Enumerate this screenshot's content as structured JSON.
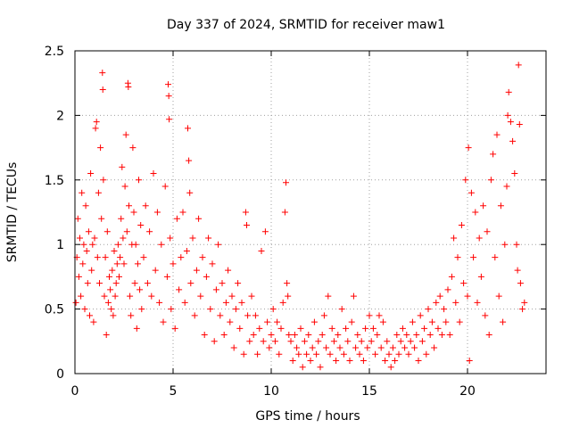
{
  "chart_data": {
    "type": "scatter",
    "title": "Day 337 of 2024, SRMTID for receiver maw1",
    "xlabel": "GPS time / hours",
    "ylabel": "SRMTID / TECUs",
    "xlim": [
      0,
      24
    ],
    "ylim": [
      0,
      2.5
    ],
    "xticks": [
      0,
      5,
      10,
      15,
      20
    ],
    "xtick_labels": [
      "0",
      "5",
      "10",
      "15",
      "20"
    ],
    "yticks": [
      0,
      0.5,
      1,
      1.5,
      2,
      2.5
    ],
    "ytick_labels": [
      "0",
      "0.5",
      "1",
      "1.5",
      "2",
      "2.5"
    ],
    "grid": true,
    "marker": "+",
    "color": "#ff0000",
    "series": [
      {
        "name": "SRMTID",
        "points": [
          [
            0.05,
            0.55
          ],
          [
            0.1,
            0.9
          ],
          [
            0.15,
            1.2
          ],
          [
            0.2,
            0.75
          ],
          [
            0.25,
            1.05
          ],
          [
            0.3,
            0.6
          ],
          [
            0.35,
            1.4
          ],
          [
            0.4,
            0.85
          ],
          [
            0.45,
            1.0
          ],
          [
            0.5,
            0.5
          ],
          [
            0.55,
            1.3
          ],
          [
            0.6,
            0.95
          ],
          [
            0.65,
            0.7
          ],
          [
            0.7,
            1.1
          ],
          [
            0.75,
            0.45
          ],
          [
            0.8,
            1.55
          ],
          [
            0.85,
            0.8
          ],
          [
            0.9,
            1.0
          ],
          [
            0.95,
            0.4
          ],
          [
            1.0,
            1.05
          ],
          [
            1.05,
            1.9
          ],
          [
            1.1,
            1.95
          ],
          [
            1.15,
            0.9
          ],
          [
            1.2,
            1.4
          ],
          [
            1.25,
            0.7
          ],
          [
            1.3,
            1.75
          ],
          [
            1.35,
            1.2
          ],
          [
            1.4,
            2.33
          ],
          [
            1.42,
            2.2
          ],
          [
            1.45,
            1.5
          ],
          [
            1.5,
            0.6
          ],
          [
            1.55,
            0.9
          ],
          [
            1.6,
            0.3
          ],
          [
            1.65,
            1.1
          ],
          [
            1.7,
            0.55
          ],
          [
            1.75,
            0.75
          ],
          [
            1.8,
            0.65
          ],
          [
            1.85,
            0.5
          ],
          [
            1.9,
            0.8
          ],
          [
            1.95,
            0.45
          ],
          [
            2.0,
            0.95
          ],
          [
            2.05,
            0.6
          ],
          [
            2.1,
            0.7
          ],
          [
            2.15,
            0.85
          ],
          [
            2.2,
            1.0
          ],
          [
            2.25,
            0.75
          ],
          [
            2.3,
            0.9
          ],
          [
            2.35,
            1.2
          ],
          [
            2.4,
            1.6
          ],
          [
            2.45,
            1.05
          ],
          [
            2.5,
            0.85
          ],
          [
            2.55,
            1.45
          ],
          [
            2.6,
            1.85
          ],
          [
            2.65,
            1.1
          ],
          [
            2.7,
            2.25
          ],
          [
            2.72,
            2.22
          ],
          [
            2.75,
            1.3
          ],
          [
            2.8,
            0.6
          ],
          [
            2.85,
            0.45
          ],
          [
            2.9,
            1.0
          ],
          [
            2.95,
            1.75
          ],
          [
            3.0,
            1.25
          ],
          [
            3.05,
            0.7
          ],
          [
            3.1,
            1.0
          ],
          [
            3.15,
            0.35
          ],
          [
            3.2,
            0.85
          ],
          [
            3.25,
            1.5
          ],
          [
            3.3,
            0.65
          ],
          [
            3.35,
            1.15
          ],
          [
            3.4,
            0.5
          ],
          [
            3.5,
            0.9
          ],
          [
            3.6,
            1.3
          ],
          [
            3.7,
            0.7
          ],
          [
            3.8,
            1.1
          ],
          [
            3.9,
            0.6
          ],
          [
            4.0,
            1.55
          ],
          [
            4.1,
            0.8
          ],
          [
            4.2,
            1.25
          ],
          [
            4.3,
            0.55
          ],
          [
            4.4,
            1.0
          ],
          [
            4.5,
            0.4
          ],
          [
            4.6,
            1.45
          ],
          [
            4.7,
            0.75
          ],
          [
            4.75,
            2.24
          ],
          [
            4.78,
            2.15
          ],
          [
            4.8,
            1.97
          ],
          [
            4.85,
            1.05
          ],
          [
            4.9,
            0.5
          ],
          [
            5.0,
            0.85
          ],
          [
            5.1,
            0.35
          ],
          [
            5.2,
            1.2
          ],
          [
            5.3,
            0.65
          ],
          [
            5.4,
            0.9
          ],
          [
            5.5,
            1.25
          ],
          [
            5.6,
            0.55
          ],
          [
            5.7,
            0.95
          ],
          [
            5.75,
            1.9
          ],
          [
            5.8,
            1.65
          ],
          [
            5.85,
            1.4
          ],
          [
            5.9,
            0.7
          ],
          [
            6.0,
            1.05
          ],
          [
            6.1,
            0.45
          ],
          [
            6.2,
            0.8
          ],
          [
            6.3,
            1.2
          ],
          [
            6.4,
            0.6
          ],
          [
            6.5,
            0.9
          ],
          [
            6.6,
            0.3
          ],
          [
            6.7,
            0.75
          ],
          [
            6.8,
            1.05
          ],
          [
            6.9,
            0.5
          ],
          [
            7.0,
            0.85
          ],
          [
            7.1,
            0.25
          ],
          [
            7.2,
            0.65
          ],
          [
            7.3,
            1.0
          ],
          [
            7.4,
            0.45
          ],
          [
            7.5,
            0.7
          ],
          [
            7.6,
            0.3
          ],
          [
            7.7,
            0.55
          ],
          [
            7.8,
            0.8
          ],
          [
            7.9,
            0.4
          ],
          [
            8.0,
            0.6
          ],
          [
            8.1,
            0.2
          ],
          [
            8.2,
            0.5
          ],
          [
            8.3,
            0.7
          ],
          [
            8.4,
            0.35
          ],
          [
            8.5,
            0.55
          ],
          [
            8.6,
            0.15
          ],
          [
            8.7,
            1.25
          ],
          [
            8.75,
            1.15
          ],
          [
            8.8,
            0.45
          ],
          [
            8.9,
            0.25
          ],
          [
            9.0,
            0.6
          ],
          [
            9.1,
            0.3
          ],
          [
            9.2,
            0.45
          ],
          [
            9.3,
            0.15
          ],
          [
            9.4,
            0.35
          ],
          [
            9.5,
            0.95
          ],
          [
            9.6,
            0.25
          ],
          [
            9.7,
            1.1
          ],
          [
            9.8,
            0.4
          ],
          [
            9.9,
            0.2
          ],
          [
            10.0,
            0.3
          ],
          [
            10.1,
            0.5
          ],
          [
            10.2,
            0.25
          ],
          [
            10.3,
            0.4
          ],
          [
            10.4,
            0.15
          ],
          [
            10.5,
            0.35
          ],
          [
            10.6,
            0.55
          ],
          [
            10.7,
            1.25
          ],
          [
            10.75,
            1.48
          ],
          [
            10.8,
            0.7
          ],
          [
            10.85,
            0.6
          ],
          [
            10.9,
            0.3
          ],
          [
            11.0,
            0.25
          ],
          [
            11.1,
            0.1
          ],
          [
            11.2,
            0.3
          ],
          [
            11.3,
            0.2
          ],
          [
            11.4,
            0.15
          ],
          [
            11.5,
            0.35
          ],
          [
            11.6,
            0.05
          ],
          [
            11.7,
            0.25
          ],
          [
            11.8,
            0.15
          ],
          [
            11.9,
            0.3
          ],
          [
            12.0,
            0.1
          ],
          [
            12.1,
            0.2
          ],
          [
            12.2,
            0.4
          ],
          [
            12.3,
            0.15
          ],
          [
            12.4,
            0.25
          ],
          [
            12.5,
            0.05
          ],
          [
            12.6,
            0.3
          ],
          [
            12.7,
            0.45
          ],
          [
            12.8,
            0.2
          ],
          [
            12.9,
            0.6
          ],
          [
            13.0,
            0.15
          ],
          [
            13.1,
            0.35
          ],
          [
            13.2,
            0.25
          ],
          [
            13.3,
            0.1
          ],
          [
            13.4,
            0.3
          ],
          [
            13.5,
            0.2
          ],
          [
            13.6,
            0.5
          ],
          [
            13.7,
            0.15
          ],
          [
            13.8,
            0.35
          ],
          [
            13.9,
            0.25
          ],
          [
            14.0,
            0.1
          ],
          [
            14.1,
            0.4
          ],
          [
            14.2,
            0.6
          ],
          [
            14.3,
            0.2
          ],
          [
            14.4,
            0.3
          ],
          [
            14.5,
            0.15
          ],
          [
            14.6,
            0.25
          ],
          [
            14.7,
            0.1
          ],
          [
            14.8,
            0.35
          ],
          [
            14.9,
            0.2
          ],
          [
            15.0,
            0.45
          ],
          [
            15.1,
            0.25
          ],
          [
            15.2,
            0.35
          ],
          [
            15.3,
            0.15
          ],
          [
            15.4,
            0.3
          ],
          [
            15.5,
            0.45
          ],
          [
            15.6,
            0.2
          ],
          [
            15.7,
            0.4
          ],
          [
            15.8,
            0.1
          ],
          [
            15.9,
            0.25
          ],
          [
            16.0,
            0.15
          ],
          [
            16.1,
            0.05
          ],
          [
            16.2,
            0.2
          ],
          [
            16.3,
            0.1
          ],
          [
            16.4,
            0.3
          ],
          [
            16.5,
            0.15
          ],
          [
            16.6,
            0.25
          ],
          [
            16.7,
            0.35
          ],
          [
            16.8,
            0.2
          ],
          [
            16.9,
            0.3
          ],
          [
            17.0,
            0.15
          ],
          [
            17.1,
            0.25
          ],
          [
            17.2,
            0.4
          ],
          [
            17.3,
            0.2
          ],
          [
            17.4,
            0.3
          ],
          [
            17.5,
            0.1
          ],
          [
            17.6,
            0.45
          ],
          [
            17.7,
            0.25
          ],
          [
            17.8,
            0.35
          ],
          [
            17.9,
            0.15
          ],
          [
            18.0,
            0.5
          ],
          [
            18.1,
            0.3
          ],
          [
            18.2,
            0.4
          ],
          [
            18.3,
            0.2
          ],
          [
            18.4,
            0.55
          ],
          [
            18.5,
            0.35
          ],
          [
            18.6,
            0.6
          ],
          [
            18.7,
            0.3
          ],
          [
            18.8,
            0.5
          ],
          [
            18.9,
            0.4
          ],
          [
            19.0,
            0.65
          ],
          [
            19.1,
            0.3
          ],
          [
            19.2,
            0.75
          ],
          [
            19.3,
            1.05
          ],
          [
            19.4,
            0.55
          ],
          [
            19.5,
            0.9
          ],
          [
            19.6,
            0.4
          ],
          [
            19.7,
            1.15
          ],
          [
            19.8,
            0.7
          ],
          [
            19.9,
            1.5
          ],
          [
            20.0,
            0.6
          ],
          [
            20.05,
            1.75
          ],
          [
            20.1,
            0.1
          ],
          [
            20.2,
            1.4
          ],
          [
            20.3,
            0.9
          ],
          [
            20.4,
            1.25
          ],
          [
            20.5,
            0.55
          ],
          [
            20.6,
            1.05
          ],
          [
            20.7,
            0.75
          ],
          [
            20.8,
            1.3
          ],
          [
            20.9,
            0.45
          ],
          [
            21.0,
            1.1
          ],
          [
            21.1,
            0.3
          ],
          [
            21.2,
            1.5
          ],
          [
            21.3,
            1.7
          ],
          [
            21.4,
            0.9
          ],
          [
            21.5,
            1.85
          ],
          [
            21.6,
            0.6
          ],
          [
            21.7,
            1.3
          ],
          [
            21.8,
            0.4
          ],
          [
            21.9,
            1.0
          ],
          [
            22.0,
            1.45
          ],
          [
            22.05,
            2.0
          ],
          [
            22.1,
            2.18
          ],
          [
            22.2,
            1.95
          ],
          [
            22.3,
            1.8
          ],
          [
            22.4,
            1.55
          ],
          [
            22.5,
            1.0
          ],
          [
            22.55,
            0.8
          ],
          [
            22.6,
            2.39
          ],
          [
            22.65,
            1.93
          ],
          [
            22.7,
            0.7
          ],
          [
            22.8,
            0.5
          ],
          [
            22.9,
            0.55
          ]
        ]
      }
    ]
  }
}
